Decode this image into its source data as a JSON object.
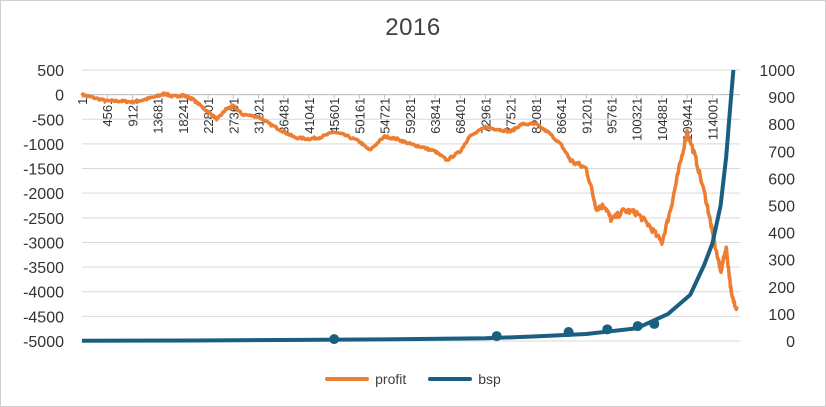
{
  "chart_data": {
    "type": "line",
    "title": "2016",
    "xlabel": "",
    "ylabel": "",
    "y_left": {
      "ticks": [
        500,
        0,
        -500,
        -1000,
        -1500,
        -2000,
        -2500,
        -3000,
        -3500,
        -4000,
        -4500,
        -5000
      ],
      "ylim": [
        -5000,
        500
      ]
    },
    "y_right": {
      "ticks": [
        1000,
        900,
        800,
        700,
        600,
        500,
        400,
        300,
        200,
        100,
        0
      ],
      "ylim": [
        0,
        1000
      ]
    },
    "x_tick_labels": [
      "1",
      "4561",
      "9121",
      "13681",
      "18241",
      "22801",
      "27361",
      "31921",
      "36481",
      "41041",
      "45601",
      "50161",
      "54721",
      "59281",
      "63841",
      "68401",
      "72961",
      "77521",
      "82081",
      "86641",
      "91201",
      "95761",
      "100321",
      "104881",
      "109441",
      "114001"
    ],
    "xlim": [
      1,
      119000
    ],
    "series": [
      {
        "name": "profit",
        "axis": "left",
        "color": "#ed7d31",
        "points": [
          [
            1,
            0
          ],
          [
            2000,
            -60
          ],
          [
            4561,
            -130
          ],
          [
            7000,
            -130
          ],
          [
            9121,
            -150
          ],
          [
            11000,
            -110
          ],
          [
            13681,
            -30
          ],
          [
            15000,
            20
          ],
          [
            16500,
            -40
          ],
          [
            18241,
            -10
          ],
          [
            20000,
            -90
          ],
          [
            22801,
            -350
          ],
          [
            24500,
            -500
          ],
          [
            26000,
            -300
          ],
          [
            27361,
            -230
          ],
          [
            29000,
            -400
          ],
          [
            31921,
            -450
          ],
          [
            34000,
            -600
          ],
          [
            36481,
            -750
          ],
          [
            38500,
            -870
          ],
          [
            41041,
            -900
          ],
          [
            43000,
            -870
          ],
          [
            45601,
            -760
          ],
          [
            47500,
            -820
          ],
          [
            50161,
            -950
          ],
          [
            52000,
            -1130
          ],
          [
            54721,
            -850
          ],
          [
            57000,
            -900
          ],
          [
            59281,
            -1000
          ],
          [
            61000,
            -1050
          ],
          [
            63841,
            -1150
          ],
          [
            66000,
            -1330
          ],
          [
            68401,
            -1150
          ],
          [
            70000,
            -860
          ],
          [
            72961,
            -660
          ],
          [
            75000,
            -700
          ],
          [
            77521,
            -750
          ],
          [
            79500,
            -600
          ],
          [
            82081,
            -600
          ],
          [
            84500,
            -780
          ],
          [
            86641,
            -1020
          ],
          [
            88500,
            -1350
          ],
          [
            91201,
            -1500
          ],
          [
            93000,
            -2300
          ],
          [
            94500,
            -2250
          ],
          [
            95761,
            -2550
          ],
          [
            98000,
            -2350
          ],
          [
            100321,
            -2400
          ],
          [
            102500,
            -2650
          ],
          [
            104881,
            -3000
          ],
          [
            106500,
            -2300
          ],
          [
            107800,
            -1600
          ],
          [
            109441,
            -750
          ],
          [
            111000,
            -1300
          ],
          [
            113000,
            -2200
          ],
          [
            114001,
            -2800
          ],
          [
            115500,
            -3600
          ],
          [
            116500,
            -3100
          ],
          [
            117500,
            -4100
          ],
          [
            118500,
            -4350
          ]
        ]
      },
      {
        "name": "bsp",
        "axis": "right",
        "color": "#1a5e80",
        "points": [
          [
            1,
            1
          ],
          [
            20000,
            2
          ],
          [
            40000,
            4
          ],
          [
            54721,
            6
          ],
          [
            72961,
            10
          ],
          [
            82081,
            17
          ],
          [
            91201,
            26
          ],
          [
            100321,
            47
          ],
          [
            106000,
            100
          ],
          [
            110000,
            170
          ],
          [
            112500,
            280
          ],
          [
            114001,
            360
          ],
          [
            115500,
            500
          ],
          [
            116500,
            680
          ],
          [
            117300,
            880
          ],
          [
            117800,
            1000
          ]
        ],
        "markers": [
          [
            45601,
            7
          ],
          [
            75000,
            18
          ],
          [
            88000,
            33
          ],
          [
            95000,
            43
          ],
          [
            100500,
            55
          ],
          [
            103500,
            63
          ]
        ]
      }
    ],
    "legend": {
      "placement": "bottom",
      "entries": [
        "profit",
        "bsp"
      ]
    }
  }
}
